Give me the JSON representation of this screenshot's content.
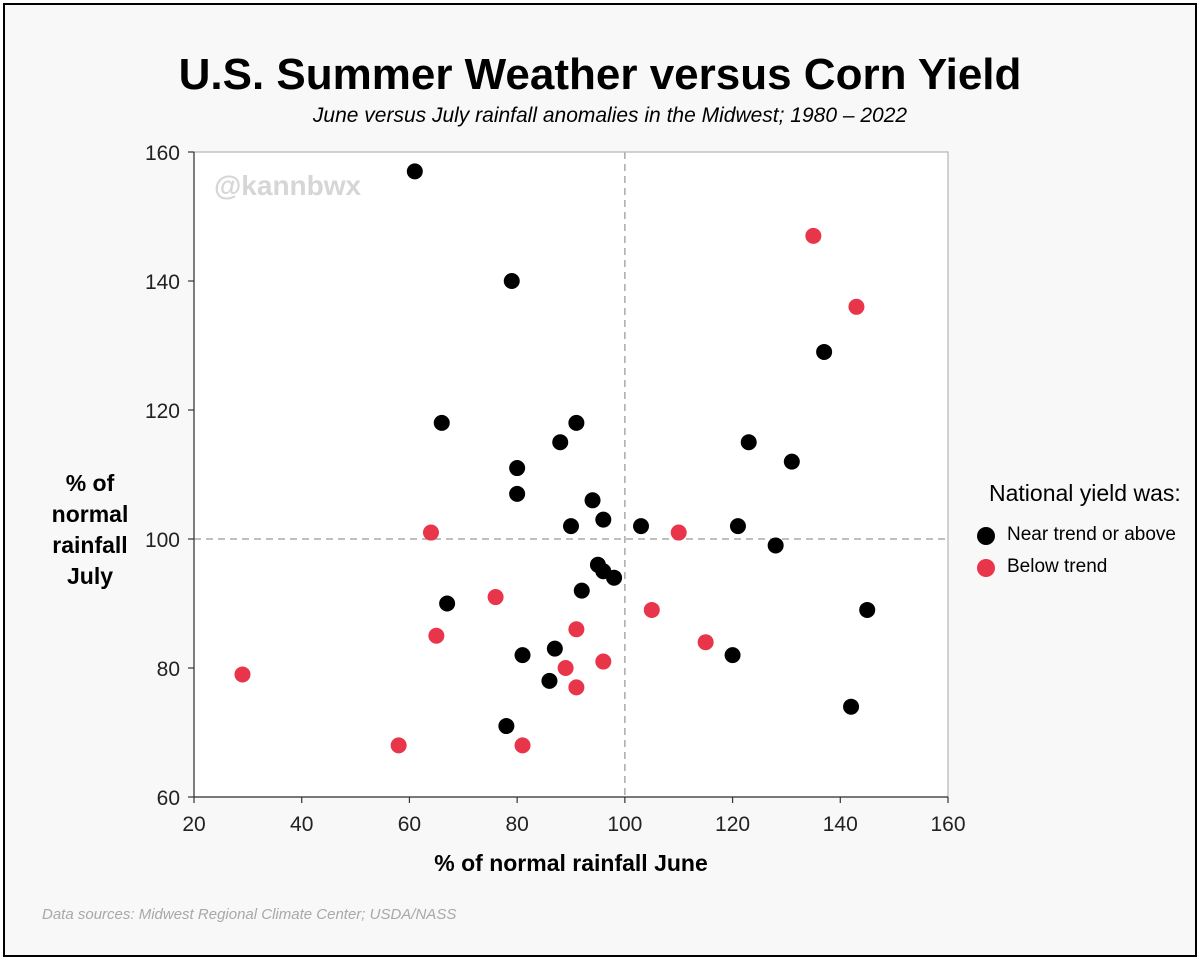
{
  "header": {
    "title": "U.S. Summer Weather versus Corn Yield",
    "subtitle": "June versus July rainfall anomalies in the Midwest; 1980 – 2022"
  },
  "watermark": "@kannbwx",
  "footer": {
    "source": "Data sources: Midwest Regional Climate Center; USDA/NASS"
  },
  "legend": {
    "title": "National yield was:",
    "items": [
      {
        "label": "Near trend or above",
        "color": "#000000"
      },
      {
        "label": "Below trend",
        "color": "#e8354a"
      }
    ]
  },
  "chart_data": {
    "type": "scatter",
    "xlabel": "% of normal rainfall June",
    "ylabel": "% of normal rainfall July",
    "xlim": [
      20,
      160
    ],
    "ylim": [
      60,
      160
    ],
    "xticks": [
      20,
      40,
      60,
      80,
      100,
      120,
      140,
      160
    ],
    "yticks": [
      60,
      80,
      100,
      120,
      140,
      160
    ],
    "reference_lines": {
      "x": 100,
      "y": 100
    },
    "grid": false,
    "legend_position": "right",
    "series": [
      {
        "name": "Near trend or above",
        "color": "#000000",
        "points": [
          [
            61,
            157
          ],
          [
            79,
            140
          ],
          [
            66,
            118
          ],
          [
            91,
            118
          ],
          [
            88,
            115
          ],
          [
            80,
            111
          ],
          [
            80,
            107
          ],
          [
            94,
            106
          ],
          [
            96,
            103
          ],
          [
            90,
            102
          ],
          [
            103,
            102
          ],
          [
            67,
            90
          ],
          [
            95,
            96
          ],
          [
            96,
            95
          ],
          [
            98,
            94
          ],
          [
            92,
            92
          ],
          [
            87,
            83
          ],
          [
            81,
            82
          ],
          [
            86,
            78
          ],
          [
            78,
            71
          ],
          [
            137,
            129
          ],
          [
            123,
            115
          ],
          [
            131,
            112
          ],
          [
            121,
            102
          ],
          [
            128,
            99
          ],
          [
            145,
            89
          ],
          [
            120,
            82
          ],
          [
            142,
            74
          ]
        ]
      },
      {
        "name": "Below trend",
        "color": "#e8354a",
        "points": [
          [
            135,
            147
          ],
          [
            143,
            136
          ],
          [
            64,
            101
          ],
          [
            110,
            101
          ],
          [
            76,
            91
          ],
          [
            65,
            85
          ],
          [
            105,
            89
          ],
          [
            91,
            86
          ],
          [
            115,
            84
          ],
          [
            96,
            81
          ],
          [
            89,
            80
          ],
          [
            91,
            77
          ],
          [
            29,
            79
          ],
          [
            58,
            68
          ],
          [
            81,
            68
          ]
        ]
      }
    ]
  }
}
